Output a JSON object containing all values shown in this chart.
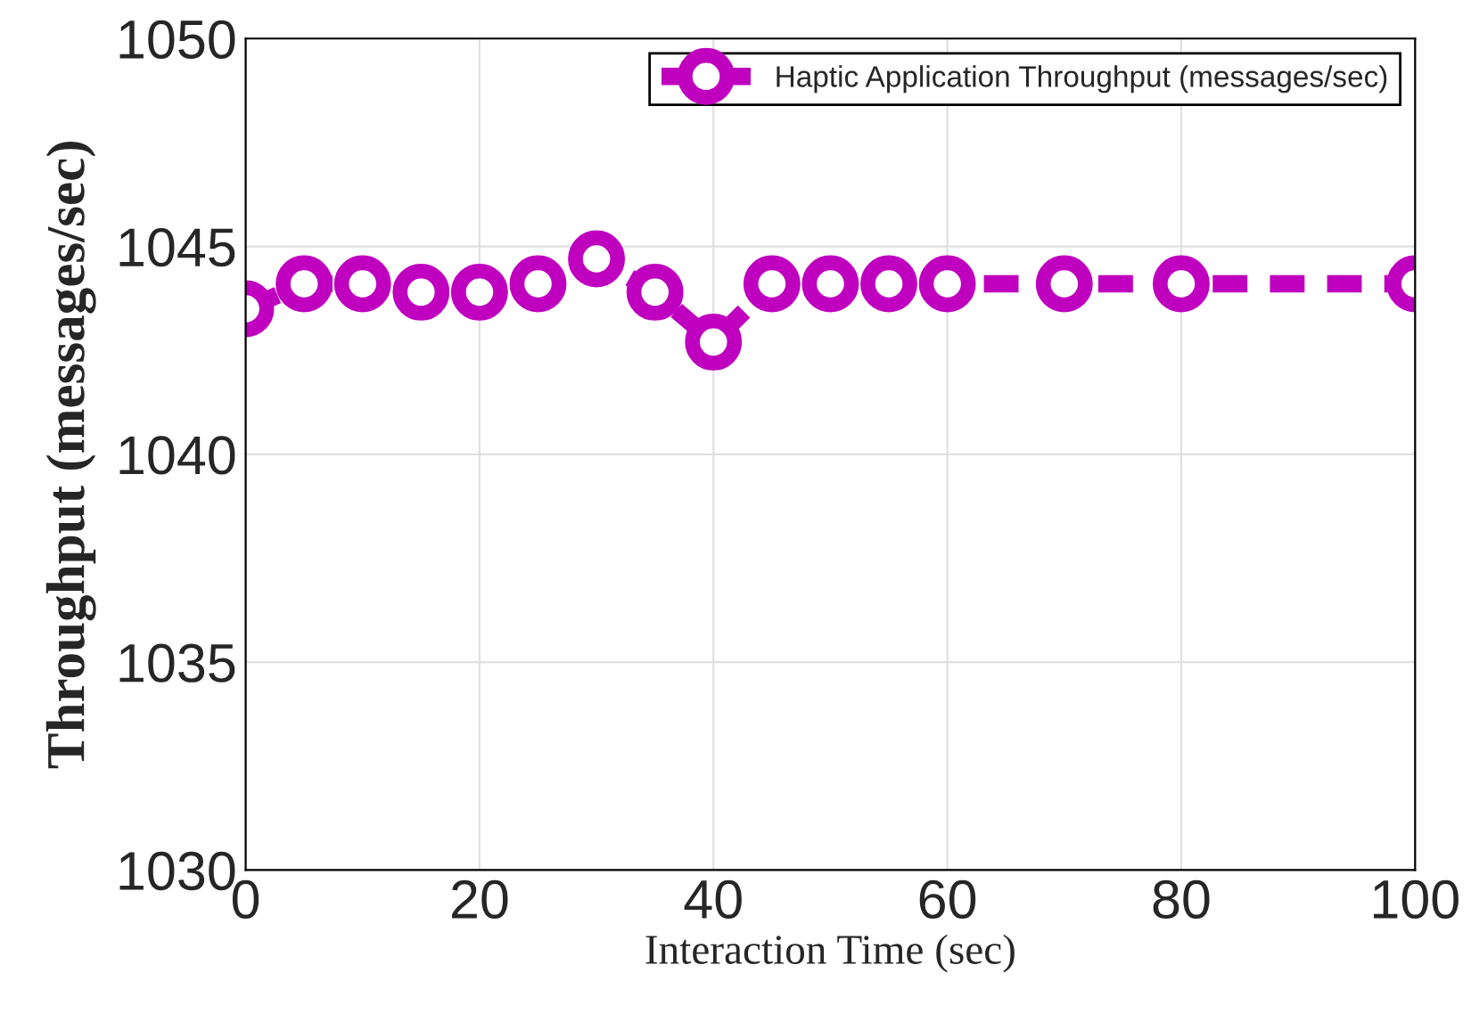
{
  "chart_data": {
    "type": "line",
    "xlabel": "Interaction Time (sec)",
    "ylabel": "Throughput (messages/sec)",
    "x": [
      0,
      5,
      10,
      15,
      20,
      25,
      30,
      35,
      40,
      45,
      50,
      55,
      60,
      70,
      80,
      100
    ],
    "series": [
      {
        "name": "Haptic Application Throughput (messages/sec)",
        "color": "#bf00bf",
        "values": [
          1043.5,
          1044.1,
          1044.1,
          1043.9,
          1043.9,
          1044.1,
          1044.7,
          1043.9,
          1042.7,
          1044.1,
          1044.1,
          1044.1,
          1044.1,
          1044.1,
          1044.1,
          1044.1
        ]
      }
    ],
    "xlim": [
      0,
      100
    ],
    "xticks": [
      0,
      20,
      40,
      60,
      80,
      100
    ],
    "ylim": [
      1030,
      1050
    ],
    "yticks": [
      1030,
      1035,
      1040,
      1045,
      1050
    ],
    "grid": true,
    "legend": "top right",
    "marker": "circle",
    "line_style": "dashed"
  }
}
